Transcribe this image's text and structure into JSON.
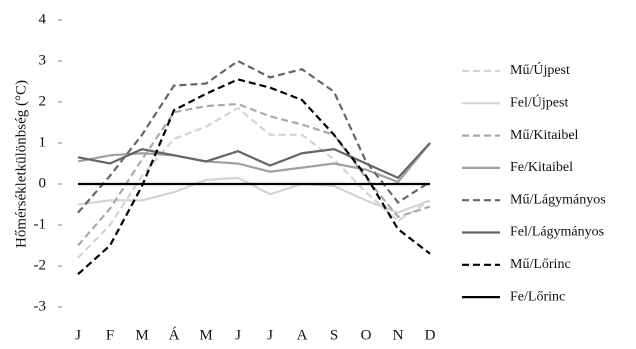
{
  "chart_data": {
    "type": "line",
    "ylabel": "Hőmérsékletkülönbség (°C)",
    "categories": [
      "J",
      "F",
      "M",
      "Á",
      "M",
      "J",
      "J",
      "A",
      "S",
      "O",
      "N",
      "D"
    ],
    "ylim": [
      -3,
      4
    ],
    "yticks": [
      -3,
      -2,
      -1,
      0,
      1,
      2,
      3,
      4
    ],
    "legend": "right",
    "series": [
      {
        "name": "Mű/Újpest",
        "color": "#d4d4d4",
        "linestyle": "dashed",
        "values": [
          -1.8,
          -1.0,
          0.2,
          1.1,
          1.4,
          1.85,
          1.2,
          1.2,
          0.6,
          -0.2,
          -0.9,
          -0.4
        ]
      },
      {
        "name": "Fel/Újpest",
        "color": "#d4d4d4",
        "linestyle": "solid",
        "values": [
          -0.5,
          -0.4,
          -0.4,
          -0.2,
          0.1,
          0.15,
          -0.25,
          0,
          -0.05,
          -0.4,
          -0.7,
          -0.4
        ]
      },
      {
        "name": "Mű/Kitaibel",
        "color": "#aaaaaa",
        "linestyle": "dashed",
        "values": [
          -1.5,
          -0.6,
          0.6,
          1.75,
          1.9,
          1.95,
          1.65,
          1.45,
          1.2,
          0.15,
          -0.8,
          -0.55
        ]
      },
      {
        "name": "Fe/Kitaibel",
        "color": "#a0a0a0",
        "linestyle": "solid",
        "values": [
          0.55,
          0.7,
          0.75,
          0.7,
          0.55,
          0.5,
          0.3,
          0.4,
          0.5,
          0.35,
          0.05,
          1.0
        ]
      },
      {
        "name": "Mű/Lágymányos",
        "color": "#666666",
        "linestyle": "dashed",
        "values": [
          -0.7,
          0.2,
          1.2,
          2.4,
          2.45,
          3.0,
          2.6,
          2.8,
          2.25,
          0.55,
          -0.45,
          0.05
        ]
      },
      {
        "name": "Fel/Lágymányos",
        "color": "#666666",
        "linestyle": "solid",
        "values": [
          0.65,
          0.5,
          0.85,
          0.7,
          0.55,
          0.8,
          0.45,
          0.75,
          0.85,
          0.5,
          0.15,
          1.0
        ]
      },
      {
        "name": "Mű/Lőrinc",
        "color": "#000000",
        "linestyle": "dashed",
        "values": [
          -2.2,
          -1.5,
          -0.05,
          1.8,
          2.2,
          2.55,
          2.35,
          2.05,
          1.2,
          0.2,
          -1.1,
          -1.7
        ]
      },
      {
        "name": "Fe/Lőrinc",
        "color": "#000000",
        "linestyle": "solid",
        "values": [
          0,
          0,
          0,
          0,
          0,
          0,
          0,
          0,
          0,
          0,
          0,
          0
        ]
      }
    ]
  }
}
